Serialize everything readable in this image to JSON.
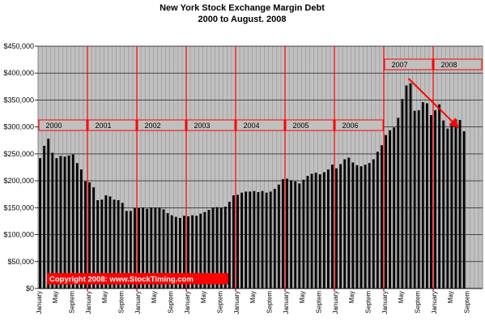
{
  "chart_data": {
    "type": "bar",
    "title": "New York Stock Exchange Margin Debt",
    "subtitle": "2000 to August. 2008",
    "xlabel": "",
    "ylabel": "",
    "ylim": [
      0,
      450000
    ],
    "y_ticks": [
      "$0",
      "$50,000",
      "$100,000",
      "$150,000",
      "$200,000",
      "$250,000",
      "$300,000",
      "$350,000",
      "$400,000",
      "$450,000"
    ],
    "y_tick_values": [
      0,
      50000,
      100000,
      150000,
      200000,
      250000,
      300000,
      350000,
      400000,
      450000
    ],
    "grid": true,
    "colors": {
      "plot_bg": "#c0c0c0",
      "bar": "#000000",
      "year_divider": "#ff0000",
      "trend_arrow": "#ff0000",
      "copyright_bg": "#ff0000"
    },
    "years": [
      "2000",
      "2001",
      "2002",
      "2003",
      "2004",
      "2005",
      "2006",
      "2007",
      "2008"
    ],
    "month_labels": [
      "January",
      "May",
      "Septem"
    ],
    "values": [
      242000,
      265000,
      278000,
      252000,
      242000,
      246000,
      245000,
      247000,
      249000,
      233000,
      221000,
      199000,
      197000,
      188000,
      164000,
      165000,
      173000,
      171000,
      165000,
      164000,
      159000,
      144000,
      144000,
      149000,
      149000,
      150000,
      148000,
      150000,
      150000,
      150000,
      147000,
      140000,
      136000,
      133000,
      131000,
      135000,
      134000,
      136000,
      135000,
      139000,
      142000,
      146000,
      150000,
      151000,
      150000,
      152000,
      161000,
      173000,
      174000,
      178000,
      180000,
      180000,
      181000,
      179000,
      181000,
      178000,
      180000,
      185000,
      193000,
      203000,
      204000,
      201000,
      199000,
      195000,
      202000,
      209000,
      213000,
      215000,
      212000,
      216000,
      221000,
      230000,
      223000,
      231000,
      240000,
      243000,
      234000,
      229000,
      227000,
      230000,
      233000,
      240000,
      254000,
      266000,
      285000,
      294000,
      299000,
      317000,
      352000,
      377000,
      381000,
      330000,
      331000,
      346000,
      344000,
      322000,
      331000,
      342000,
      312000,
      297000,
      303000,
      314000,
      313000,
      292000
    ],
    "trend_arrow": {
      "from": {
        "year": "2007",
        "month_index": 6,
        "value": 390000
      },
      "to": {
        "year": "2008",
        "month_index": 6,
        "value": 300000
      }
    },
    "annotation": "Copyright 2008: www.StockTiming.com"
  }
}
